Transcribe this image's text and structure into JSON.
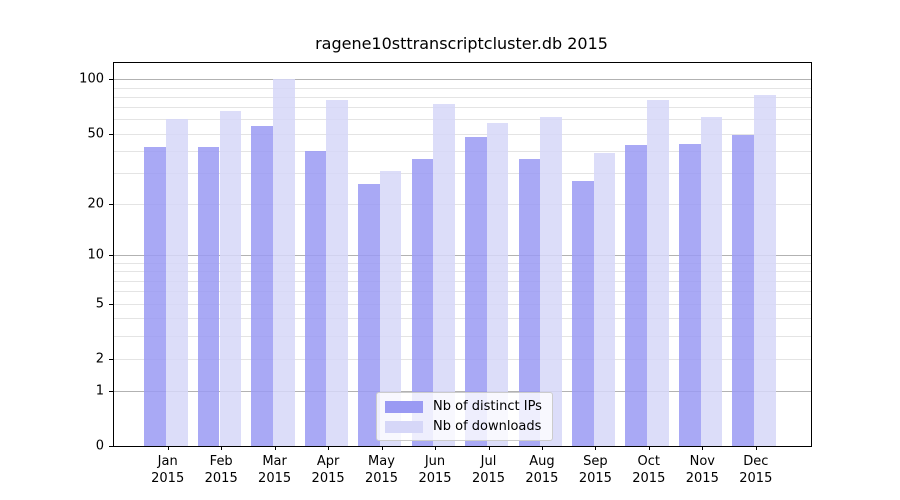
{
  "chart_data": {
    "type": "bar",
    "title": "ragene10sttranscriptcluster.db 2015",
    "xlabel": "",
    "ylabel": "",
    "scale": "log1p",
    "ylim": [
      0,
      105
    ],
    "categories": [
      "Jan",
      "Feb",
      "Mar",
      "Apr",
      "May",
      "Jun",
      "Jul",
      "Aug",
      "Sep",
      "Oct",
      "Nov",
      "Dec"
    ],
    "year_label": "2015",
    "series": [
      {
        "name": "Nb of distinct IPs",
        "color": "#9a9af3",
        "values": [
          42,
          42,
          55,
          40,
          26,
          36,
          48,
          36,
          27,
          43,
          44,
          49
        ]
      },
      {
        "name": "Nb of downloads",
        "color": "#d6d7f8",
        "values": [
          60,
          67,
          100,
          77,
          31,
          73,
          57,
          62,
          39,
          77,
          62,
          82
        ]
      }
    ],
    "y_ticks": [
      0,
      1,
      2,
      5,
      10,
      20,
      50,
      100
    ],
    "gridlines": {
      "major": [
        1,
        10,
        100
      ],
      "minor": [
        2,
        3,
        4,
        5,
        6,
        7,
        8,
        9,
        20,
        30,
        40,
        50,
        60,
        70,
        80,
        90
      ],
      "major_color": "#b2b2b2",
      "minor_color": "#e4e4e4"
    },
    "legend_position": "bottom-center"
  }
}
